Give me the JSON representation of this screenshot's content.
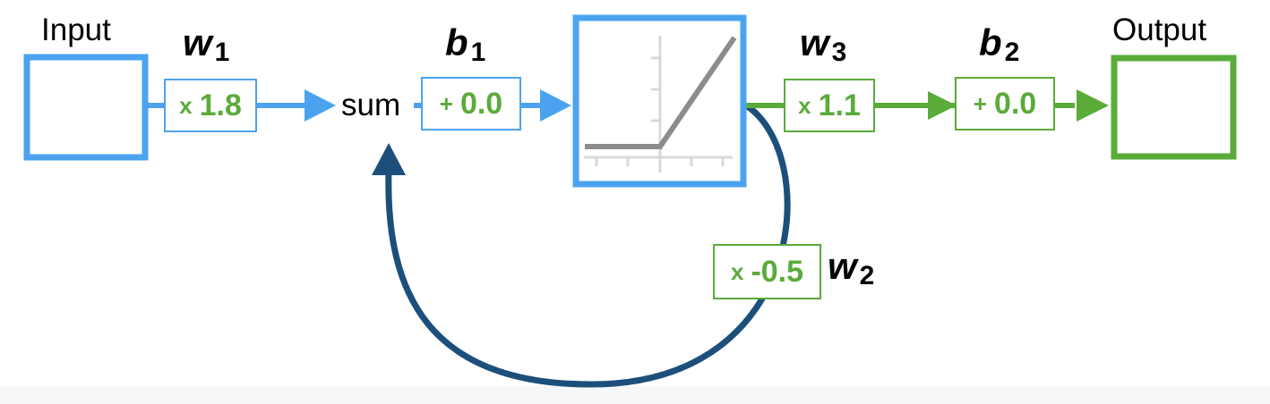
{
  "nodes": {
    "input_label": "Input",
    "output_label": "Output",
    "sum_label": "sum"
  },
  "params": {
    "w1": {
      "letter": "w",
      "sub": "1"
    },
    "b1": {
      "letter": "b",
      "sub": "1"
    },
    "w3": {
      "letter": "w",
      "sub": "3"
    },
    "b2": {
      "letter": "b",
      "sub": "2"
    },
    "w2": {
      "letter": "w",
      "sub": "2"
    }
  },
  "operations": {
    "w1": {
      "symbol": "x",
      "value": "1.8"
    },
    "b1": {
      "symbol": "+",
      "value": "0.0"
    },
    "w3": {
      "symbol": "x",
      "value": "1.1"
    },
    "b2": {
      "symbol": "+",
      "value": "0.0"
    },
    "w2": {
      "symbol": "x",
      "value": "-0.5"
    }
  },
  "colors": {
    "input_path": "#4ba3f0",
    "output_path": "#5aab3a",
    "feedback_loop": "#1d4f7c",
    "activation_curve": "#8c8c8c"
  },
  "activation": {
    "type": "relu-icon"
  }
}
